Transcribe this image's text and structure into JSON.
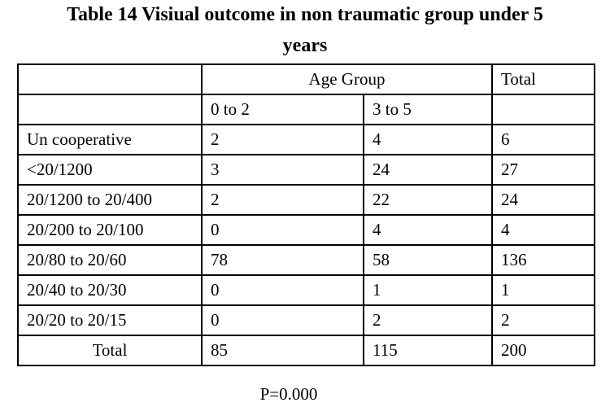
{
  "title": {
    "line1": "Table 14 Visiual  outcome in non traumatic group under 5",
    "line2": "years"
  },
  "table": {
    "header_top": {
      "corner": "",
      "age_group": "Age Group",
      "total": "Total"
    },
    "header_sub": {
      "corner": "",
      "col_a": "0 to 2",
      "col_b": "3 to 5",
      "total": ""
    },
    "rows": [
      {
        "label": "Un cooperative",
        "a": "2",
        "b": "4",
        "total": "6"
      },
      {
        "label": "<20/1200",
        "a": "3",
        "b": "24",
        "total": "27"
      },
      {
        "label": "20/1200  to 20/400",
        "a": "2",
        "b": "22",
        "total": "24"
      },
      {
        "label": "20/200 to 20/100",
        "a": "0",
        "b": "4",
        "total": "4"
      },
      {
        "label": "20/80  to 20/60",
        "a": "78",
        "b": "58",
        "total": "136"
      },
      {
        "label": "20/40 to 20/30",
        "a": "0",
        "b": "1",
        "total": "1"
      },
      {
        "label": "20/20  to 20/15",
        "a": "0",
        "b": "2",
        "total": "2"
      }
    ],
    "total_row": {
      "label": "Total",
      "a": "85",
      "b": "115",
      "total": "200"
    }
  },
  "footer": {
    "p_value": "P=0.000"
  }
}
